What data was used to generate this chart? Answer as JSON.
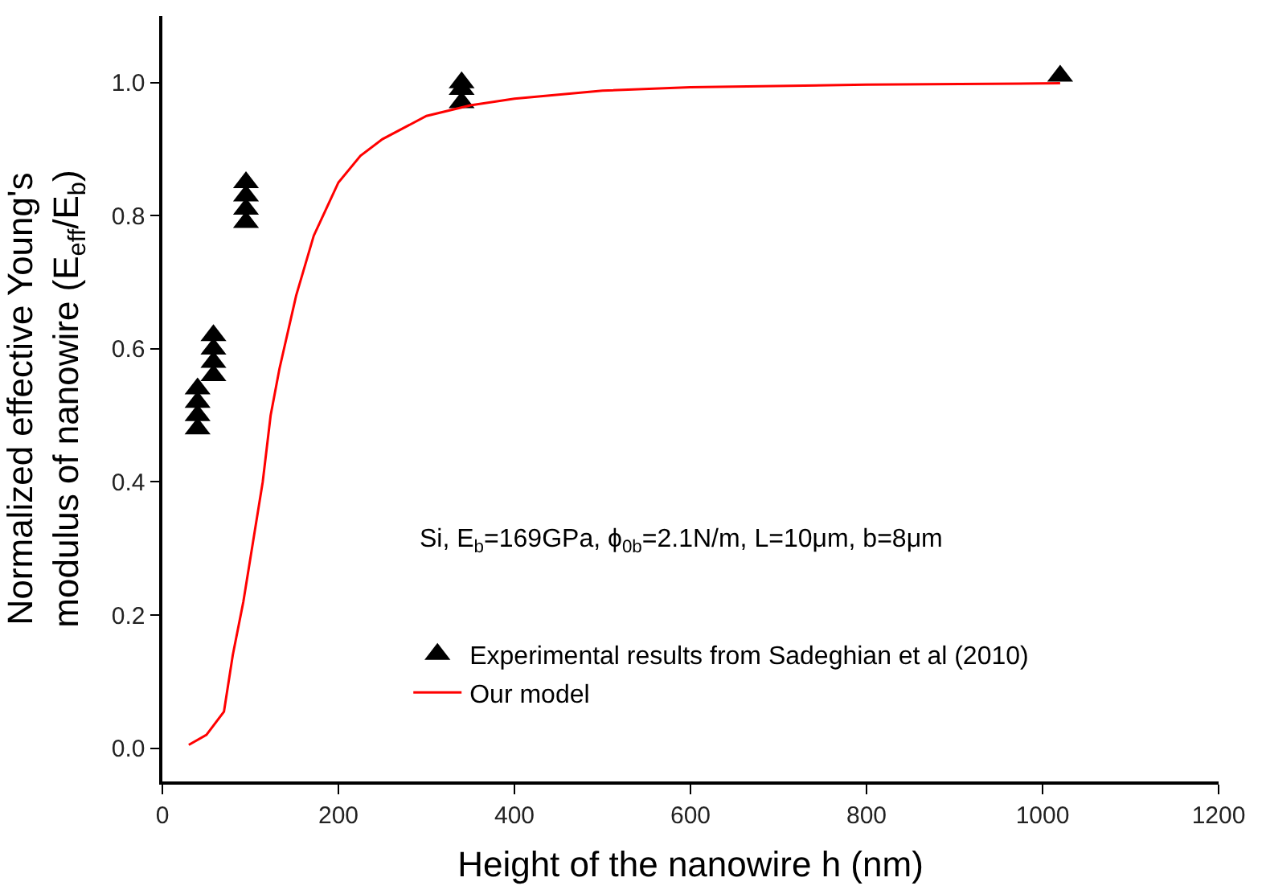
{
  "chart_data": {
    "type": "scatter",
    "xlabel": "Height of the nanowire h (nm)",
    "ylabel": "Normalized effective Young's\nmodulus of nanowire (E$_{eff}$/E$_{b}$)",
    "xlim": [
      0,
      1200
    ],
    "xticks": [
      0,
      200,
      400,
      600,
      800,
      1000,
      1200
    ],
    "ylim": [
      -0.05,
      1.1
    ],
    "yticks": [
      {
        "value": 0,
        "label": "0.0"
      },
      {
        "value": 0.2,
        "label": "0.2"
      },
      {
        "value": 0.4,
        "label": "0.4"
      },
      {
        "value": 0.6,
        "label": "0.6"
      },
      {
        "value": 0.8,
        "label": "0.8"
      },
      {
        "value": 1.0,
        "label": "1.0"
      }
    ],
    "legend": "bottom",
    "series": [
      {
        "name": "Experimental results from Sadeghian et al (2010)",
        "marker": "triangle",
        "color": "#000000",
        "x": [
          40,
          40,
          40,
          40,
          58,
          58,
          58,
          58,
          95,
          95,
          95,
          95,
          340,
          340,
          340,
          1020
        ],
        "values": [
          0.48,
          0.5,
          0.52,
          0.54,
          0.56,
          0.58,
          0.6,
          0.62,
          0.79,
          0.81,
          0.83,
          0.85,
          0.97,
          0.99,
          1.0,
          1.01
        ]
      },
      {
        "name": "Our model",
        "type": "line",
        "marker": "none",
        "line_style": "solid",
        "color": "#ff0000",
        "x": [
          30,
          50,
          70,
          80,
          92,
          103,
          114,
          123,
          133,
          152,
          172,
          200,
          225,
          250,
          300,
          350,
          400,
          500,
          600,
          800,
          1020
        ],
        "values": [
          0.005,
          0.02,
          0.055,
          0.14,
          0.22,
          0.31,
          0.4,
          0.5,
          0.57,
          0.68,
          0.77,
          0.85,
          0.89,
          0.915,
          0.95,
          0.966,
          0.976,
          0.988,
          0.993,
          0.997,
          0.999
        ]
      }
    ],
    "annotations": [
      "Si, E$_{b}$=169GPa, ϕ$_{0b}$=2.1N/m, L=10μm, b=8μm"
    ]
  }
}
